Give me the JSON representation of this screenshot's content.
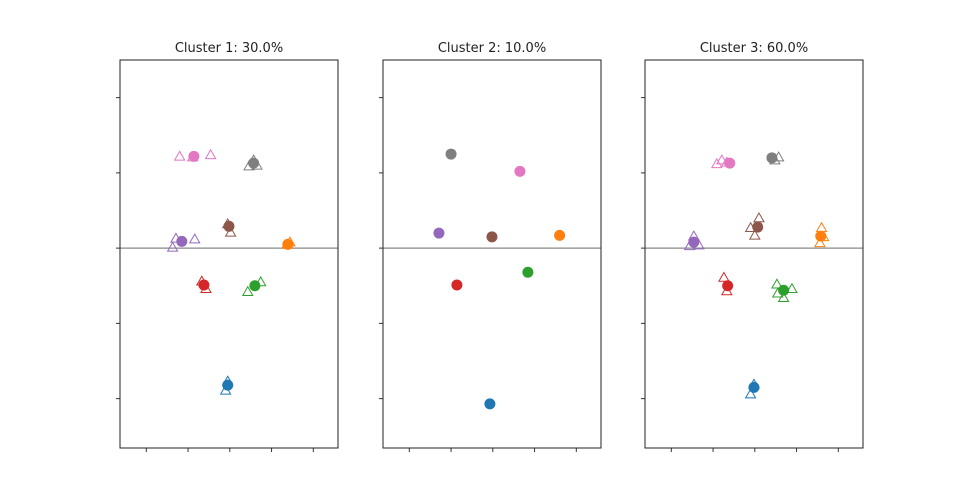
{
  "chart_data": {
    "type": "scatter",
    "xlim": [
      -2.63,
      2.59
    ],
    "ylim": [
      -2.66,
      2.5
    ],
    "xticks": [
      -2,
      -1,
      0,
      1,
      2
    ],
    "yticks": [
      -2,
      -1,
      0,
      1,
      2
    ],
    "tick_labels_shown": false,
    "reference_line_y": 0,
    "colors": {
      "blue": "#1f77b4",
      "orange": "#ff7f0e",
      "green": "#2ca02c",
      "red": "#d62728",
      "purple": "#9467bd",
      "brown": "#8c564b",
      "pink": "#e377c2",
      "gray": "#7f7f7f"
    },
    "panels": [
      {
        "title": "Cluster 1: 30.0%",
        "centers": {
          "pink": [
            -0.86,
            1.22
          ],
          "gray": [
            0.57,
            1.13
          ],
          "brown": [
            -0.02,
            0.29
          ],
          "purple": [
            -1.15,
            0.09
          ],
          "orange": [
            1.39,
            0.05
          ],
          "red": [
            -0.62,
            -0.49
          ],
          "green": [
            0.6,
            -0.5
          ],
          "blue": [
            -0.05,
            -1.82
          ]
        },
        "members": {
          "pink": [
            [
              -1.2,
              1.22
            ],
            [
              -0.89,
              1.21
            ],
            [
              -0.46,
              1.24
            ]
          ],
          "gray": [
            [
              0.46,
              1.09
            ],
            [
              0.57,
              1.17
            ],
            [
              0.65,
              1.1
            ]
          ],
          "brown": [
            [
              0.02,
              0.21
            ],
            [
              -0.05,
              0.32
            ]
          ],
          "purple": [
            [
              -1.29,
              0.13
            ],
            [
              -1.37,
              0.01
            ],
            [
              -0.84,
              0.12
            ]
          ],
          "orange": [
            [
              1.37,
              0.05
            ],
            [
              1.44,
              0.08
            ]
          ],
          "red": [
            [
              -0.67,
              -0.44
            ],
            [
              -0.57,
              -0.54
            ]
          ],
          "green": [
            [
              0.43,
              -0.58
            ],
            [
              0.74,
              -0.45
            ]
          ],
          "blue": [
            [
              -0.05,
              -1.77
            ],
            [
              -0.1,
              -1.89
            ]
          ]
        }
      },
      {
        "title": "Cluster 2: 10.0%",
        "centers": {
          "gray": [
            -1.0,
            1.25
          ],
          "pink": [
            0.65,
            1.02
          ],
          "purple": [
            -1.29,
            0.2
          ],
          "brown": [
            -0.02,
            0.15
          ],
          "orange": [
            1.6,
            0.17
          ],
          "red": [
            -0.86,
            -0.49
          ],
          "green": [
            0.84,
            -0.32
          ],
          "blue": [
            -0.07,
            -2.07
          ]
        },
        "members": {}
      },
      {
        "title": "Cluster 3: 60.0%",
        "centers": {
          "pink": [
            -0.6,
            1.13
          ],
          "gray": [
            0.41,
            1.2
          ],
          "brown": [
            0.07,
            0.28
          ],
          "purple": [
            -1.46,
            0.08
          ],
          "orange": [
            1.58,
            0.16
          ],
          "red": [
            -0.65,
            -0.5
          ],
          "green": [
            0.69,
            -0.56
          ],
          "blue": [
            -0.02,
            -1.85
          ]
        },
        "members": {
          "pink": [
            [
              -0.91,
              1.12
            ],
            [
              -0.79,
              1.17
            ],
            [
              -0.67,
              1.14
            ]
          ],
          "gray": [
            [
              0.57,
              1.21
            ],
            [
              0.48,
              1.17
            ]
          ],
          "brown": [
            [
              0.1,
              0.4
            ],
            [
              0.0,
              0.17
            ],
            [
              -0.1,
              0.27
            ]
          ],
          "purple": [
            [
              -1.46,
              0.16
            ],
            [
              -1.34,
              0.04
            ],
            [
              -1.56,
              0.03
            ]
          ],
          "orange": [
            [
              1.6,
              0.27
            ],
            [
              1.56,
              0.07
            ],
            [
              1.65,
              0.15
            ]
          ],
          "red": [
            [
              -0.74,
              -0.39
            ],
            [
              -0.67,
              -0.57
            ]
          ],
          "green": [
            [
              0.53,
              -0.48
            ],
            [
              0.89,
              -0.54
            ],
            [
              0.69,
              -0.66
            ],
            [
              0.55,
              -0.6
            ]
          ],
          "blue": [
            [
              -0.1,
              -1.94
            ],
            [
              -0.02,
              -1.81
            ]
          ]
        }
      }
    ]
  }
}
